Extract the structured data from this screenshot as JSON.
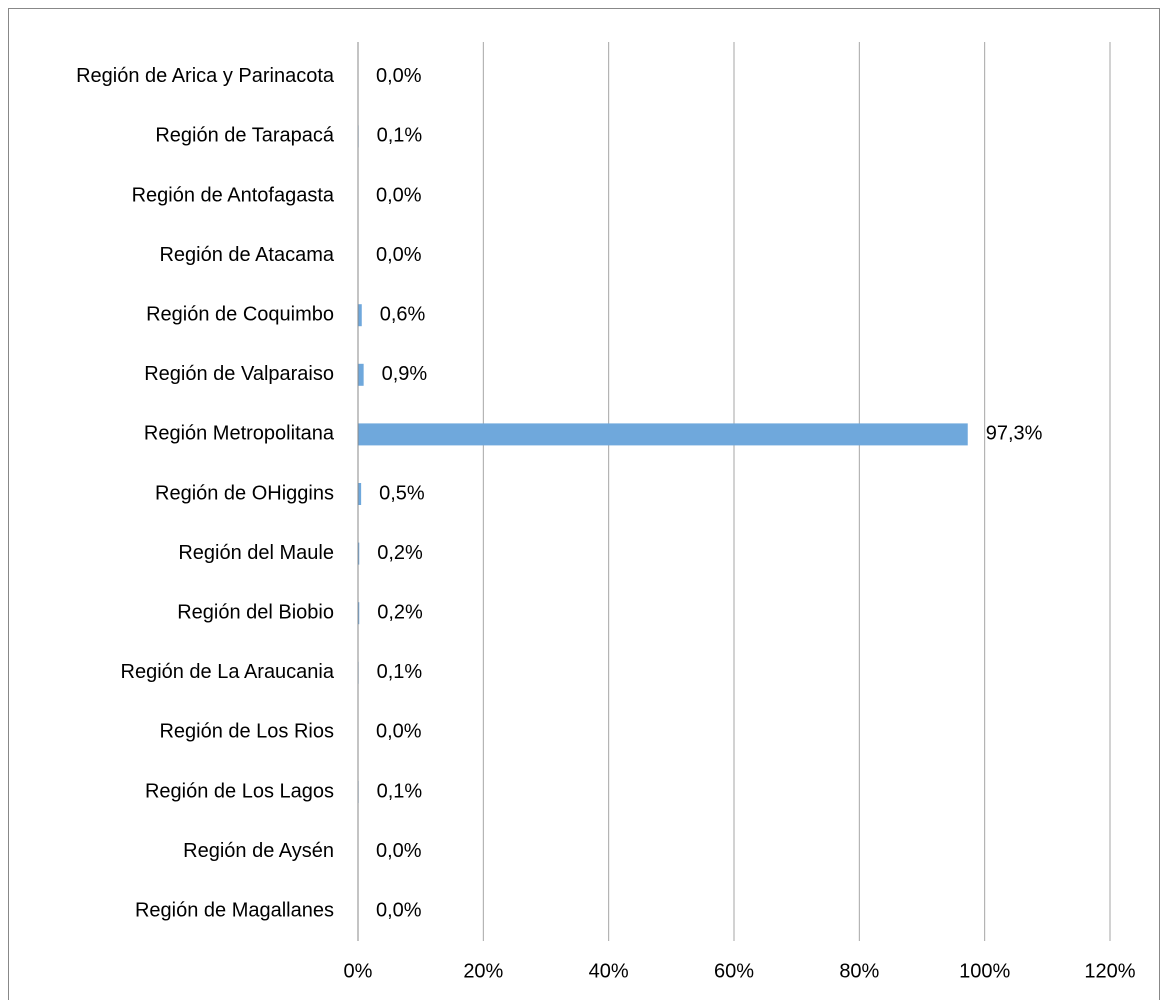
{
  "chart_data": {
    "type": "bar",
    "orientation": "horizontal",
    "categories": [
      "Región de Arica y Parinacota",
      "Región de Tarapacá",
      "Región de Antofagasta",
      "Región de Atacama",
      "Región de Coquimbo",
      "Región de Valparaiso",
      "Región Metropolitana",
      "Región de OHiggins",
      "Región del Maule",
      "Región del Biobio",
      "Región de La Araucania",
      "Región de Los Rios",
      "Región de Los Lagos",
      "Región de Aysén",
      "Región de Magallanes"
    ],
    "values": [
      0.0,
      0.1,
      0.0,
      0.0,
      0.6,
      0.9,
      97.3,
      0.5,
      0.2,
      0.2,
      0.1,
      0.0,
      0.1,
      0.0,
      0.0
    ],
    "value_labels": [
      "0,0%",
      "0,1%",
      "0,0%",
      "0,0%",
      "0,6%",
      "0,9%",
      "97,3%",
      "0,5%",
      "0,2%",
      "0,2%",
      "0,1%",
      "0,0%",
      "0,1%",
      "0,0%",
      "0,0%"
    ],
    "color": "#6fa8dc",
    "xlim": [
      0,
      120
    ],
    "xticks": [
      {
        "value": 0,
        "label": "0%"
      },
      {
        "value": 20,
        "label": "20%"
      },
      {
        "value": 40,
        "label": "40%"
      },
      {
        "value": 60,
        "label": "60%"
      },
      {
        "value": 80,
        "label": "80%"
      },
      {
        "value": 100,
        "label": "100%"
      },
      {
        "value": 120,
        "label": "120%"
      }
    ],
    "grid": true
  }
}
